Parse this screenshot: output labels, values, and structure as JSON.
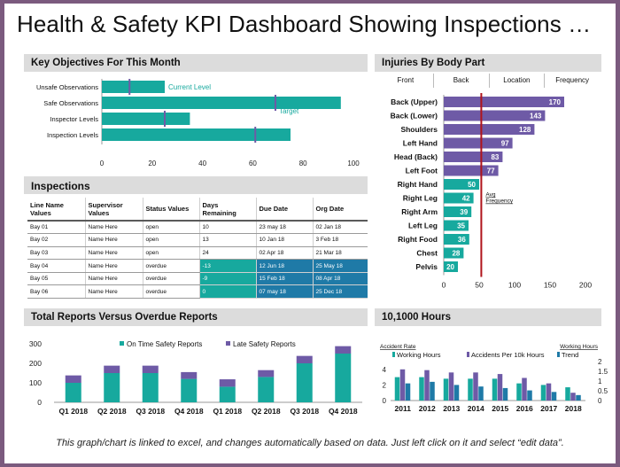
{
  "title": "Health & Safety KPI Dashboard Showing Inspections …",
  "footer": "This graph/chart is linked to excel, and changes automatically based on data. Just left click on it and select “edit data”.",
  "colors": {
    "teal": "#17a99e",
    "purple": "#6e5aa6",
    "red": "#b0141c",
    "blue": "#1f7aa7"
  },
  "objectives": {
    "header": "Key Objectives For This Month",
    "current_label": "Current Level",
    "target_label": "Target"
  },
  "inspections": {
    "header": "Inspections",
    "columns": [
      "Line Name Values",
      "Supervisor Values",
      "Status Values",
      "Days Remaining",
      "Due Date",
      "Org Date"
    ],
    "rows": [
      {
        "line": "Bay 01",
        "supervisor": "Name Here",
        "status": "open",
        "days": "10",
        "due": "23 may 18",
        "org": "02 Jan 18",
        "highlight": false
      },
      {
        "line": "Bay 02",
        "supervisor": "Name Here",
        "status": "open",
        "days": "13",
        "due": "10 Jan 18",
        "org": "3 Feb 18",
        "highlight": false
      },
      {
        "line": "Bay 03",
        "supervisor": "Name Here",
        "status": "open",
        "days": "24",
        "due": "02 Apr 18",
        "org": "21 Mar 18",
        "highlight": false
      },
      {
        "line": "Bay 04",
        "supervisor": "Name Here",
        "status": "overdue",
        "days": "-13",
        "due": "12 Jun 18",
        "org": "25 May 18",
        "highlight": true
      },
      {
        "line": "Bay 05",
        "supervisor": "Name Here",
        "status": "overdue",
        "days": "-9",
        "due": "15 Feb 18",
        "org": "08 Apr 18",
        "highlight": true
      },
      {
        "line": "Bay 06",
        "supervisor": "Name Here",
        "status": "overdue",
        "days": "0",
        "due": "07 may 18",
        "org": "25 Dec 18",
        "highlight": true
      }
    ]
  },
  "injuries": {
    "header": "Injuries By Body Part",
    "tabs": [
      "Front",
      "Back",
      "Location",
      "Frequency"
    ],
    "avg_label": "Avg Frequency"
  },
  "reports": {
    "header": "Total Reports Versus Overdue Reports"
  },
  "hours": {
    "header": "10,1000 Hours",
    "left_axis_label": "Accident Rate",
    "right_axis_label": "Working Hours"
  },
  "chart_data": [
    {
      "id": "objectives",
      "type": "bar",
      "orientation": "horizontal",
      "title": "Key Objectives For This Month",
      "categories": [
        "Unsafe Observations",
        "Safe Observations",
        "Inspector Levels",
        "Inspection Levels"
      ],
      "series": [
        {
          "name": "Current Level",
          "values": [
            25,
            95,
            35,
            75
          ]
        },
        {
          "name": "Target",
          "values": [
            11,
            69,
            25,
            61
          ]
        }
      ],
      "xlim": [
        0,
        100
      ],
      "xticks": [
        0,
        20,
        40,
        60,
        80,
        100
      ]
    },
    {
      "id": "injuries",
      "type": "bar",
      "orientation": "horizontal",
      "title": "Injuries By Body Part",
      "categories": [
        "Back (Upper)",
        "Back (Lower)",
        "Shoulders",
        "Left Hand",
        "Head (Back)",
        "Left Foot",
        "Right Hand",
        "Right Leg",
        "Right Arm",
        "Left Leg",
        "Right Food",
        "Chest",
        "Pelvis"
      ],
      "values": [
        170,
        143,
        128,
        97,
        83,
        77,
        50,
        42,
        39,
        35,
        36,
        28,
        20
      ],
      "average": 53,
      "annotation": "Avg Frequency",
      "xlim": [
        0,
        200
      ],
      "xticks": [
        0,
        50,
        100,
        150,
        200
      ]
    },
    {
      "id": "reports",
      "type": "bar",
      "stacked": true,
      "title": "Total Reports Versus Overdue Reports",
      "categories": [
        "Q1 2018",
        "Q2 2018",
        "Q3 2018",
        "Q4 2018",
        "Q1 2018",
        "Q2 2018",
        "Q3 2018",
        "Q4 2018"
      ],
      "series": [
        {
          "name": "On Time Safety Reports",
          "values": [
            100,
            150,
            150,
            120,
            80,
            130,
            200,
            250
          ]
        },
        {
          "name": "Late Safety Reports",
          "values": [
            38,
            38,
            38,
            35,
            38,
            35,
            38,
            38
          ]
        }
      ],
      "ylim": [
        0,
        300
      ],
      "yticks": [
        0,
        100,
        200,
        300
      ]
    },
    {
      "id": "hours",
      "type": "bar",
      "title": "10,1000 Hours",
      "ylabel": "Accident Rate",
      "y2label": "Working Hours",
      "categories": [
        "2011",
        "2012",
        "2013",
        "2014",
        "2015",
        "2016",
        "2017",
        "2018"
      ],
      "series": [
        {
          "name": "Working Hours",
          "values": [
            3,
            3,
            2.8,
            2.8,
            2.8,
            2.2,
            2,
            1.7
          ]
        },
        {
          "name": "Accidents Per 10k Hours",
          "values": [
            4,
            3.9,
            3.6,
            3.6,
            3.4,
            2.9,
            2.2,
            1
          ]
        },
        {
          "name": "Trend",
          "values": [
            2.2,
            2.4,
            2,
            1.8,
            1.6,
            1.3,
            1.1,
            0.7
          ]
        }
      ],
      "ylim": [
        0,
        5
      ],
      "yticks": [
        0,
        2,
        4
      ],
      "y2lim": [
        0,
        2
      ],
      "y2ticks": [
        0,
        0.5,
        1,
        1.5,
        2
      ]
    }
  ]
}
